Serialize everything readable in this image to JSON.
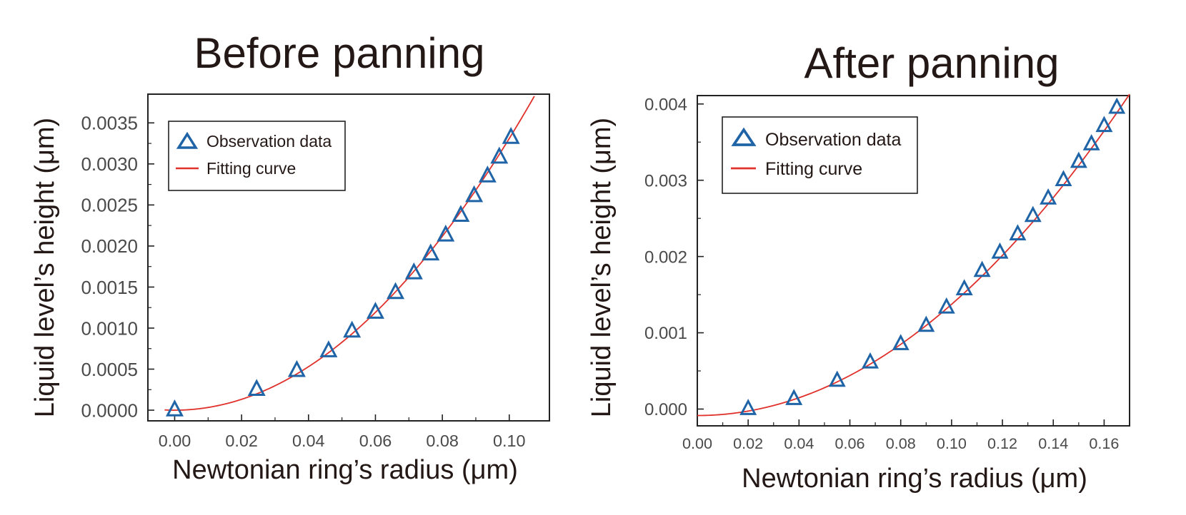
{
  "chart_data": [
    {
      "type": "scatter",
      "title": "Before panning",
      "xlabel": "Newtonian ring’s radius (μm)",
      "ylabel": "Liquid level’s height (μm)",
      "xlim": [
        -0.008,
        0.112
      ],
      "ylim": [
        -0.00013,
        0.00385
      ],
      "xticks": [
        "0.00",
        "0.02",
        "0.04",
        "0.06",
        "0.08",
        "0.10"
      ],
      "xtick_values": [
        0.0,
        0.02,
        0.04,
        0.06,
        0.08,
        0.1
      ],
      "yticks": [
        "0.0000",
        "0.0005",
        "0.0010",
        "0.0015",
        "0.0020",
        "0.0025",
        "0.0030",
        "0.0035"
      ],
      "ytick_values": [
        0.0,
        0.0005,
        0.001,
        0.0015,
        0.002,
        0.0025,
        0.003,
        0.0035
      ],
      "legend_position": "top-left",
      "grid": false,
      "series": [
        {
          "name": "Observation data",
          "marker": "triangle",
          "color": "#1f64a6",
          "x": [
            0.0,
            0.0245,
            0.0365,
            0.046,
            0.053,
            0.06,
            0.066,
            0.0715,
            0.0765,
            0.081,
            0.0855,
            0.0895,
            0.0935,
            0.097,
            0.1005
          ],
          "y": [
            0.0,
            0.00025,
            0.00048,
            0.00072,
            0.00096,
            0.00119,
            0.00143,
            0.00167,
            0.0019,
            0.00213,
            0.00237,
            0.00261,
            0.00285,
            0.00308,
            0.00332
          ]
        },
        {
          "name": "Fitting curve",
          "type": "line",
          "color": "#e0312c",
          "model": "quadratic",
          "coefficients": {
            "a": 0.331,
            "b": 0.0,
            "c": 0.0
          },
          "x_range": [
            -0.003,
            0.1075
          ]
        }
      ]
    },
    {
      "type": "scatter",
      "title": "After panning",
      "xlabel": "Newtonian ring’s radius (μm)",
      "ylabel": "Liquid level’s height (μm)",
      "xlim": [
        0.0,
        0.17
      ],
      "ylim": [
        -0.00022,
        0.00411
      ],
      "xticks": [
        "0.00",
        "0.02",
        "0.04",
        "0.06",
        "0.08",
        "0.10",
        "0.12",
        "0.14",
        "0.16"
      ],
      "xtick_values": [
        0.0,
        0.02,
        0.04,
        0.06,
        0.08,
        0.1,
        0.12,
        0.14,
        0.16
      ],
      "yticks": [
        "0.000",
        "0.001",
        "0.002",
        "0.003",
        "0.004"
      ],
      "ytick_values": [
        0.0,
        0.001,
        0.002,
        0.003,
        0.004
      ],
      "legend_position": "top-left",
      "grid": false,
      "series": [
        {
          "name": "Observation data",
          "marker": "triangle",
          "color": "#1f64a6",
          "x": [
            0.02,
            0.038,
            0.055,
            0.068,
            0.08,
            0.09,
            0.098,
            0.105,
            0.112,
            0.119,
            0.126,
            0.132,
            0.138,
            0.144,
            0.15,
            0.155,
            0.16,
            0.165
          ],
          "y": [
            0.0,
            0.00013,
            0.00037,
            0.00061,
            0.00085,
            0.00109,
            0.00133,
            0.00157,
            0.00181,
            0.00205,
            0.00229,
            0.00253,
            0.00276,
            0.003,
            0.00324,
            0.00347,
            0.00371,
            0.00395
          ]
        },
        {
          "name": "Fitting curve",
          "type": "line",
          "color": "#e0312c",
          "model": "quadratic",
          "coefficients": {
            "a": 0.1458,
            "b": 0.0,
            "c": -8.5e-05
          },
          "x_range": [
            0.0,
            0.17
          ]
        }
      ]
    }
  ]
}
